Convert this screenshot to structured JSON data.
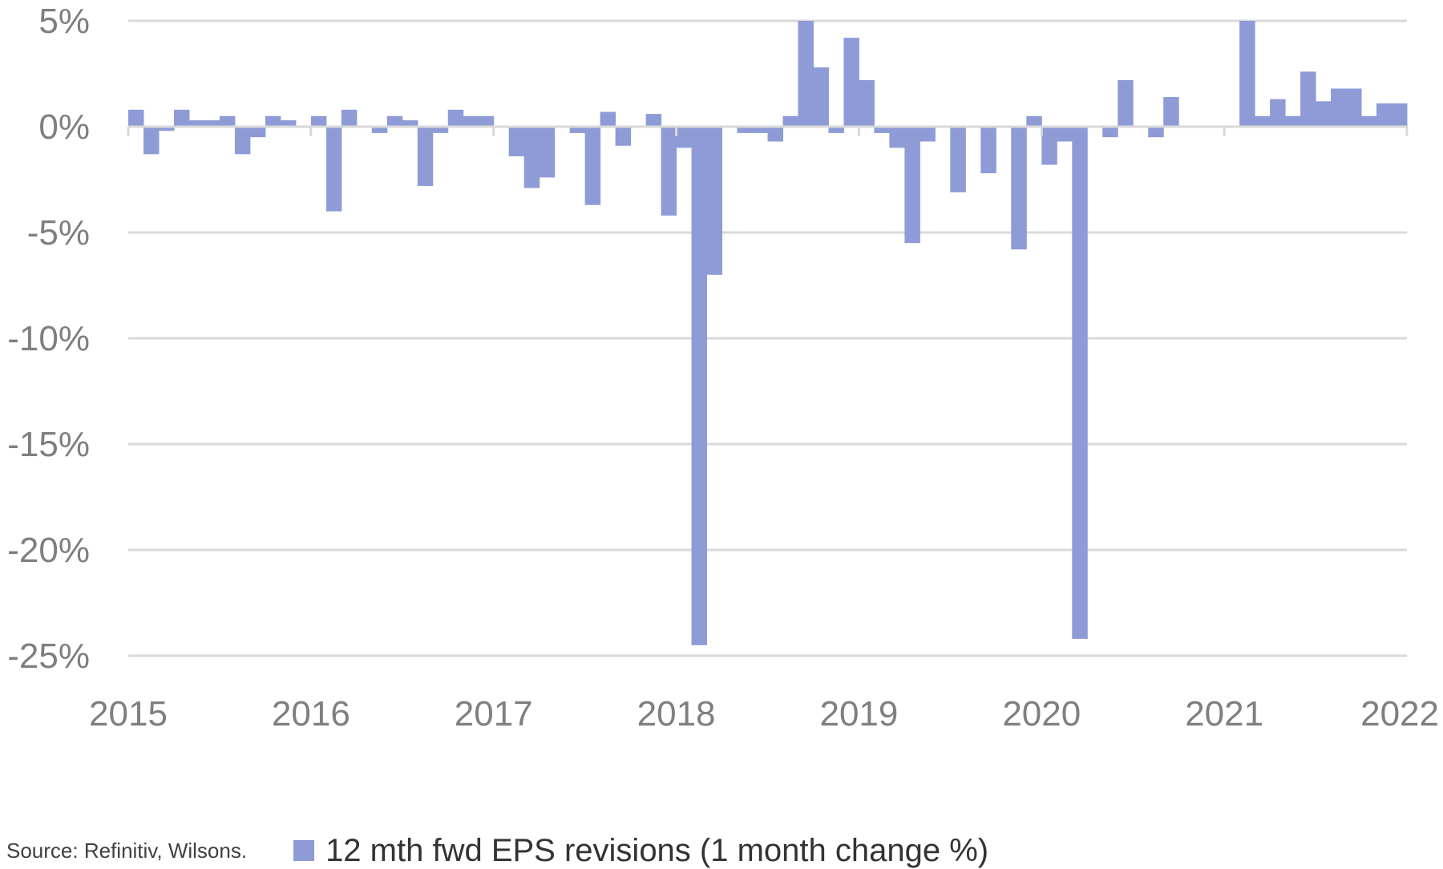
{
  "chart_data": {
    "type": "bar",
    "title": "",
    "xlabel": "",
    "ylabel": "",
    "ylim": [
      -25,
      5
    ],
    "yticks": [
      {
        "value": 5,
        "label": "5%"
      },
      {
        "value": 0,
        "label": "0%"
      },
      {
        "value": -5,
        "label": "-5%"
      },
      {
        "value": -10,
        "label": "-10%"
      },
      {
        "value": -15,
        "label": "-15%"
      },
      {
        "value": -20,
        "label": "-20%"
      },
      {
        "value": -25,
        "label": "-25%"
      }
    ],
    "xticks": [
      "2015",
      "2016",
      "2017",
      "2018",
      "2019",
      "2020",
      "2021",
      "2022"
    ],
    "grid": "horizontal",
    "legend_position": "bottom",
    "color": "#8e9bd6",
    "series": [
      {
        "name": "12 mth fwd EPS revisions (1 month change %)",
        "x": [
          "2015-01",
          "2015-02",
          "2015-03",
          "2015-04",
          "2015-05",
          "2015-06",
          "2015-07",
          "2015-08",
          "2015-09",
          "2015-10",
          "2015-11",
          "2015-12",
          "2016-01",
          "2016-02",
          "2016-03",
          "2016-04",
          "2016-05",
          "2016-06",
          "2016-07",
          "2016-08",
          "2016-09",
          "2016-10",
          "2016-11",
          "2016-12",
          "2017-01",
          "2017-02",
          "2017-03",
          "2017-04",
          "2017-05",
          "2017-06",
          "2017-07",
          "2017-08",
          "2017-09",
          "2017-10",
          "2017-11",
          "2017-12",
          "2018-01",
          "2018-02",
          "2018-03",
          "2018-04",
          "2018-05",
          "2018-06",
          "2018-07",
          "2018-08",
          "2018-09",
          "2018-10",
          "2018-11",
          "2018-12",
          "2019-01",
          "2019-02",
          "2019-03",
          "2019-04",
          "2019-05",
          "2019-06",
          "2019-07",
          "2019-08",
          "2019-09",
          "2019-10",
          "2019-11",
          "2019-12",
          "2020-01",
          "2020-02",
          "2020-03",
          "2020-04",
          "2020-05",
          "2020-06",
          "2020-07",
          "2020-08",
          "2020-09",
          "2020-10",
          "2020-11",
          "2020-12",
          "2021-01",
          "2021-02",
          "2021-03",
          "2021-04",
          "2021-05",
          "2021-06",
          "2021-07",
          "2021-08",
          "2021-09",
          "2021-10",
          "2021-11",
          "2021-12"
        ],
        "values": [
          0.8,
          -1.3,
          -0.2,
          0.8,
          0.3,
          0.3,
          0.5,
          -1.3,
          -0.5,
          0.5,
          0.3,
          0.0,
          0.5,
          -4.0,
          0.8,
          0.0,
          -0.3,
          0.5,
          0.3,
          -2.8,
          -0.3,
          0.8,
          0.5,
          0.5,
          0.0,
          -1.4,
          -2.9,
          -2.4,
          0.0,
          -0.3,
          -3.7,
          0.7,
          -0.9,
          0.0,
          0.6,
          -4.2,
          -1.0,
          -24.5,
          -7.0,
          0.0,
          -0.3,
          -0.3,
          -0.7,
          0.5,
          5.0,
          2.8,
          -0.3,
          4.2,
          2.2,
          -0.3,
          -1.0,
          -5.5,
          -0.7,
          0.0,
          -3.1,
          0.0,
          -2.2,
          0.0,
          -5.8,
          0.5,
          -1.8,
          -0.7,
          -24.2,
          0.0,
          -0.5,
          2.2,
          0.0,
          -0.5,
          1.4,
          0.0,
          0.0,
          0.0,
          0.0,
          5.0,
          0.5,
          1.3,
          0.5,
          2.6,
          1.2,
          1.8,
          1.8,
          0.5,
          1.1,
          1.1
        ]
      }
    ],
    "source": "Source: Refinitiv, Wilsons."
  }
}
